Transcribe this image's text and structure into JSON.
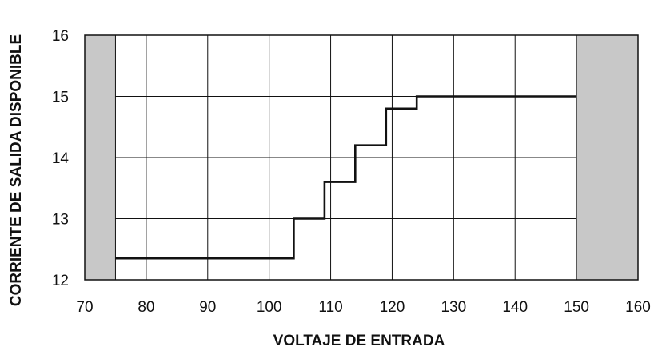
{
  "chart_data": {
    "type": "line",
    "title": "",
    "xlabel": "VOLTAJE DE ENTRADA",
    "ylabel": "CORRIENTE DE SALIDA DISPONIBLE",
    "xlim": [
      70,
      160
    ],
    "ylim": [
      12,
      16
    ],
    "xticks": [
      "70",
      "80",
      "90",
      "100",
      "110",
      "120",
      "130",
      "140",
      "150",
      "160"
    ],
    "yticks": [
      "12",
      "13",
      "14",
      "15",
      "16"
    ],
    "grid": true,
    "shaded_x_ranges": [
      [
        70,
        75
      ],
      [
        150,
        160
      ]
    ],
    "line_style": "step",
    "series": [
      {
        "x": [
          75,
          104,
          104,
          109,
          109,
          114,
          114,
          119,
          119,
          124,
          124,
          150
        ],
        "y": [
          12.35,
          12.35,
          13.0,
          13.0,
          13.6,
          13.6,
          14.2,
          14.2,
          14.8,
          14.8,
          15.0,
          15.0
        ]
      }
    ],
    "colors": {
      "line": "#111111",
      "shade": "#c8c8c8",
      "grid": "#111111"
    }
  }
}
